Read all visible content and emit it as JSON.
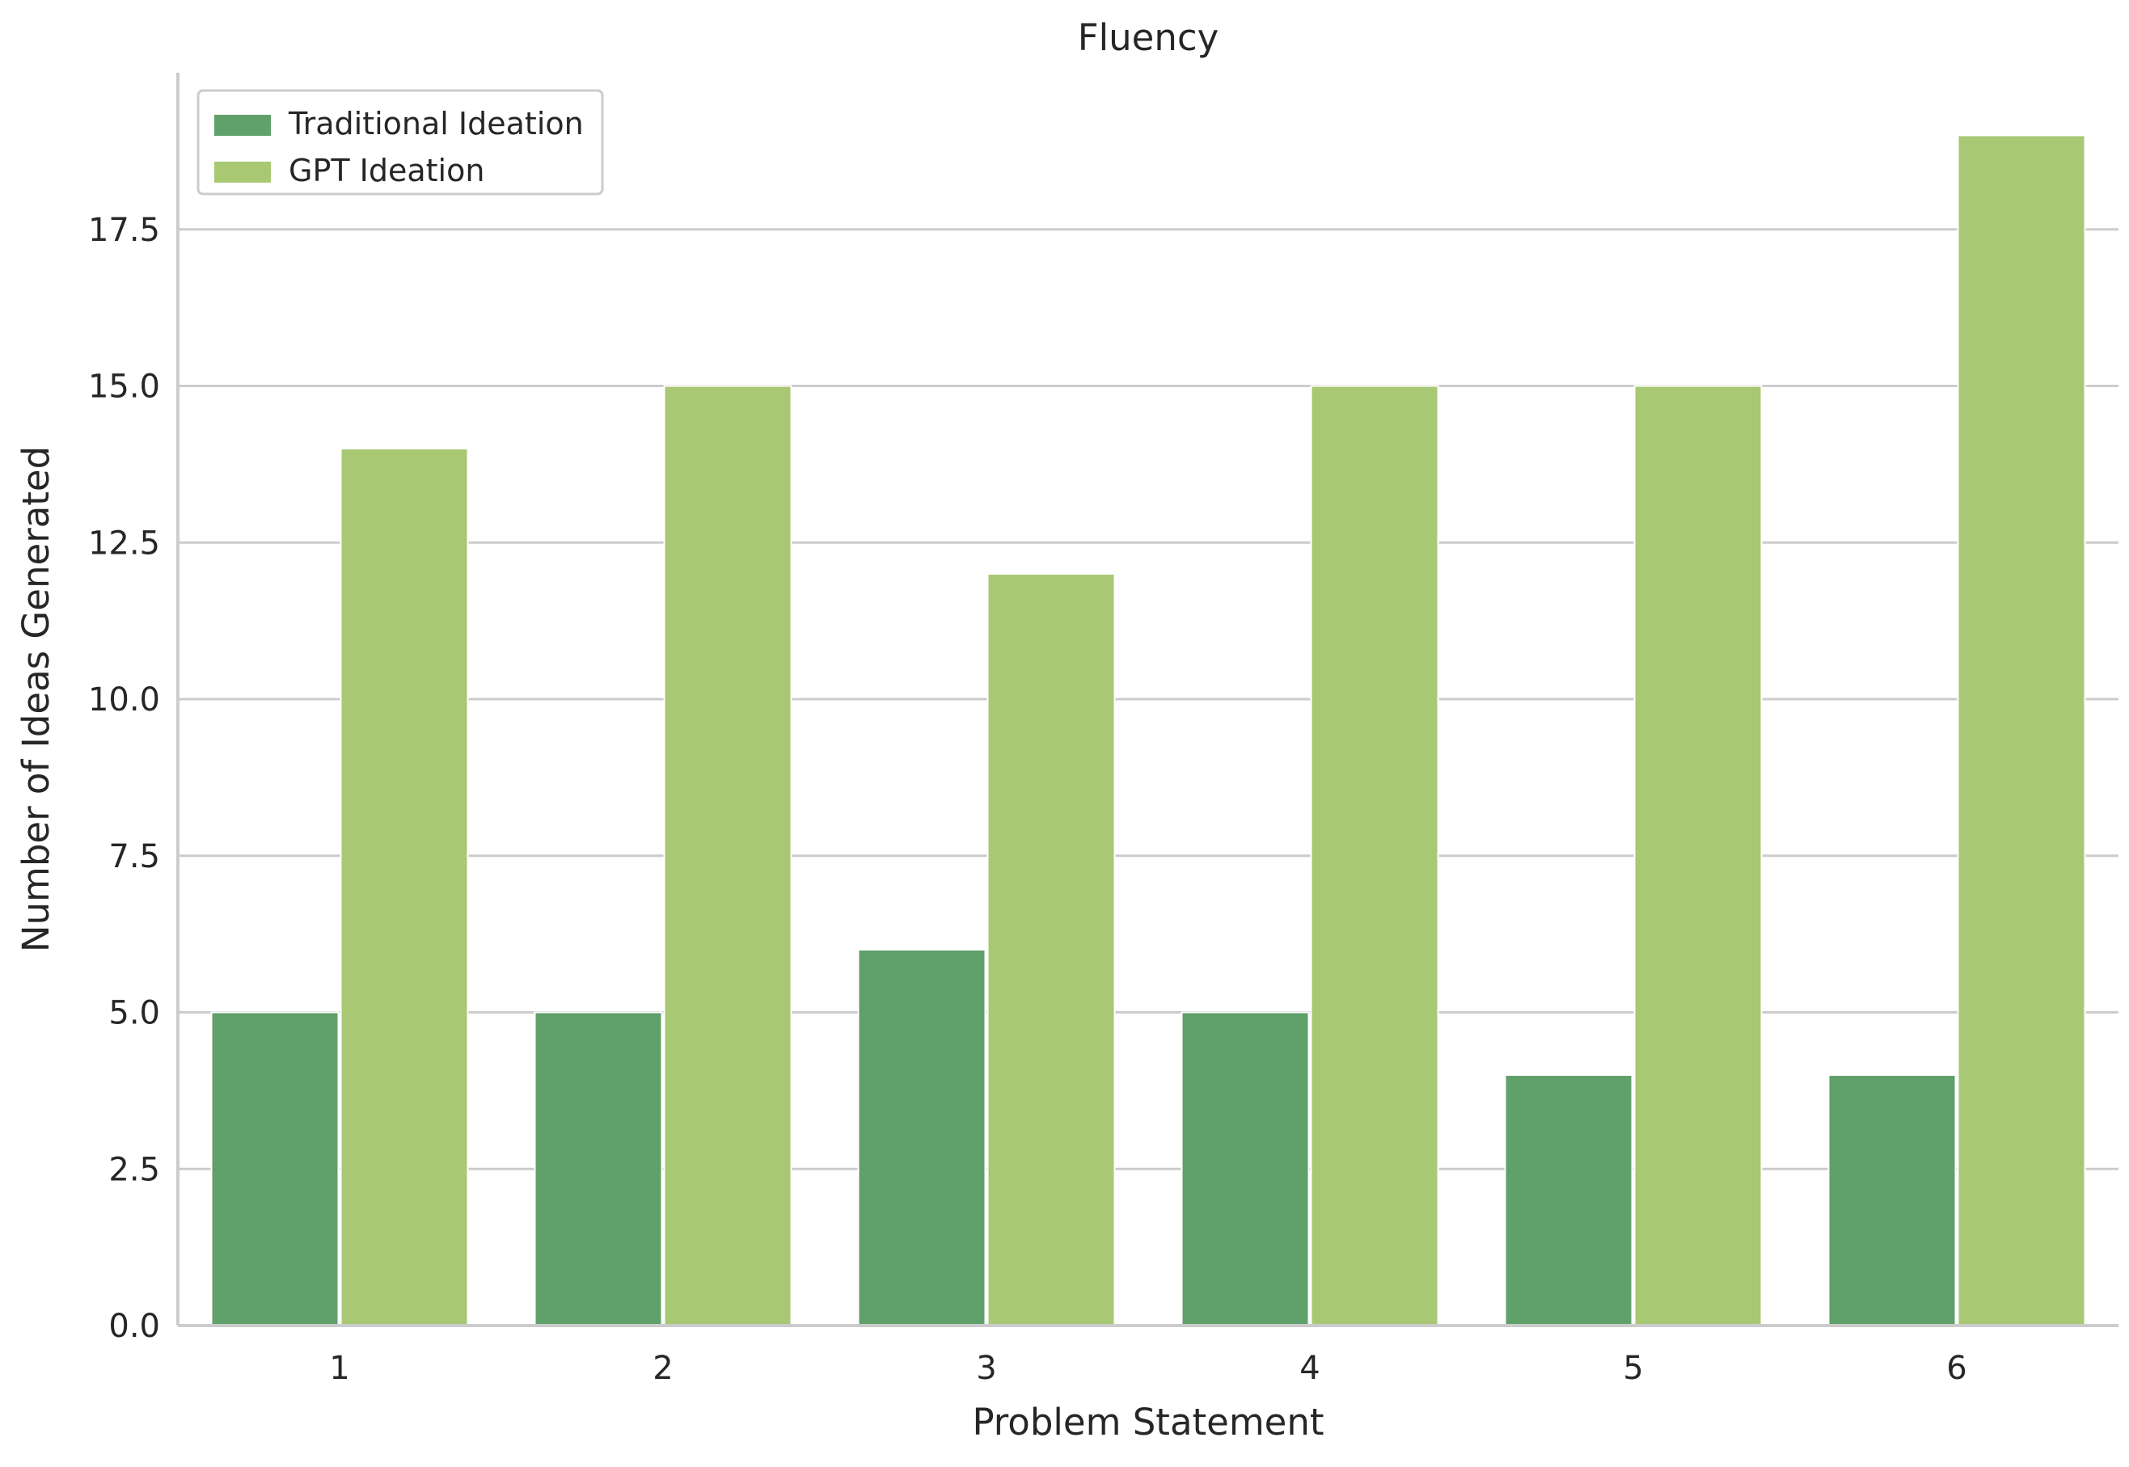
{
  "chart_data": {
    "type": "bar",
    "title": "Fluency",
    "xlabel": "Problem Statement",
    "ylabel": "Number of Ideas Generated",
    "categories": [
      "1",
      "2",
      "3",
      "4",
      "5",
      "6"
    ],
    "series": [
      {
        "name": "Traditional Ideation",
        "color": "#60a06b",
        "values": [
          5,
          5,
          6,
          5,
          4,
          4
        ]
      },
      {
        "name": "GPT Ideation",
        "color": "#a8c874",
        "values": [
          14,
          15,
          12,
          15,
          15,
          19
        ]
      }
    ],
    "ylim": [
      0,
      20
    ],
    "yticks": [
      0,
      2.5,
      5,
      7.5,
      10,
      12.5,
      15,
      17.5
    ],
    "ytick_labels": [
      "0.0",
      "2.5",
      "5.0",
      "7.5",
      "10.0",
      "12.5",
      "15.0",
      "17.5"
    ],
    "grid": "horizontal",
    "legend_position": "top-left"
  }
}
